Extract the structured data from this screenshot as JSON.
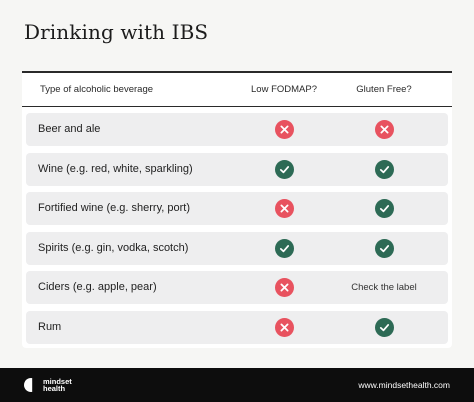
{
  "title": "Drinking with IBS",
  "colors": {
    "check": "#2d6a55",
    "cross": "#e8525f",
    "row_bg": "#eeeeef",
    "footer_bg": "#0d0d0d"
  },
  "table": {
    "headers": [
      "Type of alcoholic beverage",
      "Low FODMAP?",
      "Gluten Free?"
    ],
    "rows": [
      {
        "beverage": "Beer and ale",
        "low_fodmap": "cross-icon",
        "gluten_free": "cross-icon"
      },
      {
        "beverage": "Wine (e.g. red, white, sparkling)",
        "low_fodmap": "check-icon",
        "gluten_free": "check-icon"
      },
      {
        "beverage": "Fortified wine (e.g. sherry, port)",
        "low_fodmap": "cross-icon",
        "gluten_free": "check-icon"
      },
      {
        "beverage": "Spirits (e.g. gin, vodka, scotch)",
        "low_fodmap": "check-icon",
        "gluten_free": "check-icon"
      },
      {
        "beverage": "Ciders (e.g. apple, pear)",
        "low_fodmap": "cross-icon",
        "gluten_free": "Check the label"
      },
      {
        "beverage": "Rum",
        "low_fodmap": "cross-icon",
        "gluten_free": "check-icon"
      }
    ]
  },
  "footer": {
    "brand_line1": "mindset",
    "brand_line2": "health",
    "website": "www.mindsethealth.com"
  }
}
